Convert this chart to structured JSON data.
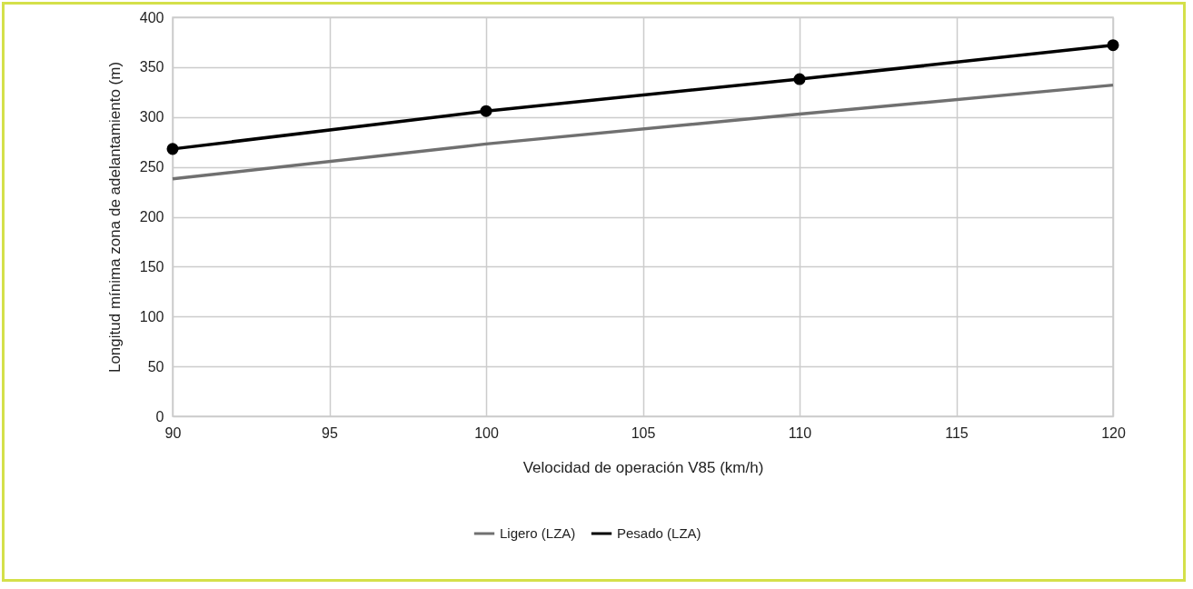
{
  "chart_data": {
    "type": "line",
    "xlabel": "Velocidad de operación V85 (km/h)",
    "ylabel": "Longitud mínima zona de adelantamiento (m)",
    "x": [
      90,
      100,
      110,
      120
    ],
    "series": [
      {
        "name": "Ligero (LZA)",
        "color": "#707070",
        "marker": "none",
        "values": [
          238,
          273,
          303,
          332
        ]
      },
      {
        "name": "Pesado (LZA)",
        "color": "#000000",
        "marker": "circle",
        "values": [
          268,
          306,
          338,
          372
        ]
      }
    ],
    "xlim": [
      90,
      120
    ],
    "xticks": [
      90,
      95,
      100,
      105,
      110,
      115,
      120
    ],
    "ylim": [
      0,
      400
    ],
    "yticks": [
      0,
      50,
      100,
      150,
      200,
      250,
      300,
      350,
      400
    ],
    "grid": true,
    "legend": "bottom",
    "line_style": "solid"
  }
}
